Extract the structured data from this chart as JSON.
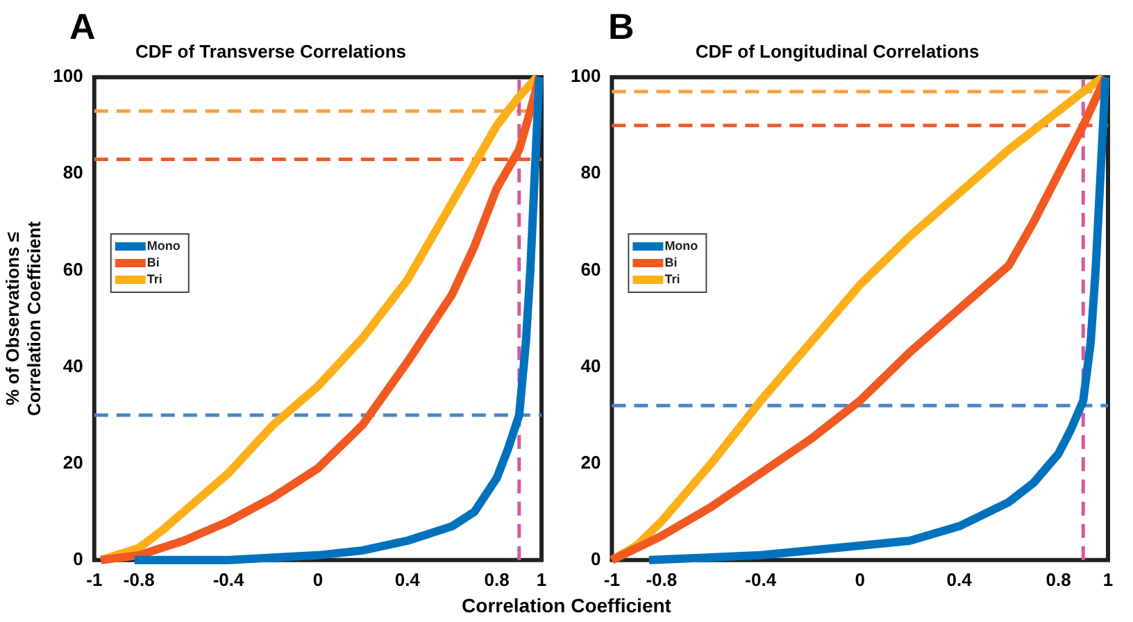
{
  "chart_data": [
    {
      "type": "line",
      "title": "CDF of Transverse Correlations",
      "ylabel": "% of Observations ≤\nCorrelation Coefficient",
      "xlabel": "Correlation Coefficient",
      "annotations": [
        "A"
      ],
      "xlim": [
        -1,
        1
      ],
      "xticks": [
        -1,
        -0.8,
        -0.4,
        0,
        0.4,
        0.8,
        1
      ],
      "ylim": [
        0,
        100
      ],
      "yticks": [
        0,
        20,
        40,
        60,
        80,
        100
      ],
      "grid": false,
      "legend": "left",
      "marker": "none",
      "line_style": "solid",
      "series": [
        {
          "name": "Mono",
          "color": "#0072bd",
          "x": [
            -0.82,
            -0.4,
            0,
            0.2,
            0.4,
            0.6,
            0.7,
            0.8,
            0.85,
            0.9,
            0.93,
            0.95,
            0.97,
            0.99
          ],
          "values": [
            0,
            0,
            1,
            2,
            4,
            7,
            10,
            17,
            23,
            30,
            45,
            60,
            80,
            100
          ]
        },
        {
          "name": "Bi",
          "color": "#f05a22",
          "x": [
            -0.97,
            -0.8,
            -0.6,
            -0.4,
            -0.2,
            0,
            0.2,
            0.4,
            0.6,
            0.7,
            0.8,
            0.9,
            0.95,
            0.99
          ],
          "values": [
            0,
            1,
            4,
            8,
            13,
            19,
            28,
            41,
            55,
            65,
            77,
            85,
            93,
            100
          ]
        },
        {
          "name": "Tri",
          "color": "#fbb01a",
          "x": [
            -0.97,
            -0.8,
            -0.7,
            -0.6,
            -0.4,
            -0.2,
            0,
            0.2,
            0.4,
            0.6,
            0.7,
            0.8,
            0.9,
            0.98
          ],
          "values": [
            0,
            2.5,
            6,
            10,
            18,
            28,
            36,
            46,
            58,
            74,
            82,
            90,
            96,
            100
          ]
        }
      ],
      "ref_lines": [
        {
          "axis": "y",
          "value": 93,
          "color": "#f5a33c",
          "line_style": "dashed"
        },
        {
          "axis": "y",
          "value": 83,
          "color": "#ee5a2a",
          "line_style": "dashed"
        },
        {
          "axis": "y",
          "value": 30,
          "color": "#4a86c5",
          "line_style": "dashed"
        },
        {
          "axis": "x",
          "value": 0.9,
          "color": "#d35aa2",
          "line_style": "dashed"
        }
      ]
    },
    {
      "type": "line",
      "title": "CDF of Longitudinal Correlations",
      "annotations": [
        "B"
      ],
      "xlim": [
        -1,
        1
      ],
      "xticks": [
        -1,
        -0.8,
        -0.4,
        0,
        0.4,
        0.8,
        1
      ],
      "ylim": [
        0,
        100
      ],
      "yticks": [
        0,
        20,
        40,
        60,
        80,
        100
      ],
      "grid": false,
      "legend": "left",
      "marker": "none",
      "line_style": "solid",
      "series": [
        {
          "name": "Mono",
          "color": "#0072bd",
          "x": [
            -0.85,
            -0.4,
            0,
            0.2,
            0.4,
            0.6,
            0.7,
            0.8,
            0.85,
            0.9,
            0.93,
            0.95,
            0.97,
            0.99
          ],
          "values": [
            0,
            1,
            3,
            4,
            7,
            12,
            16,
            22,
            27,
            33,
            45,
            60,
            80,
            100
          ]
        },
        {
          "name": "Bi",
          "color": "#f05a22",
          "x": [
            -1,
            -0.8,
            -0.6,
            -0.4,
            -0.2,
            0,
            0.2,
            0.4,
            0.6,
            0.7,
            0.8,
            0.9,
            0.99
          ],
          "values": [
            0,
            5,
            11,
            18,
            25,
            33,
            43,
            52,
            61,
            70,
            80,
            90,
            100
          ]
        },
        {
          "name": "Tri",
          "color": "#fbb01a",
          "x": [
            -1,
            -0.9,
            -0.8,
            -0.6,
            -0.4,
            -0.2,
            0,
            0.2,
            0.4,
            0.6,
            0.8,
            0.9,
            0.98
          ],
          "values": [
            0,
            3,
            8,
            20,
            33,
            45,
            57,
            67,
            76,
            85,
            93,
            97,
            100
          ]
        }
      ],
      "ref_lines": [
        {
          "axis": "y",
          "value": 97,
          "color": "#f5a33c",
          "line_style": "dashed"
        },
        {
          "axis": "y",
          "value": 90,
          "color": "#ee5a2a",
          "line_style": "dashed"
        },
        {
          "axis": "y",
          "value": 32,
          "color": "#4a86c5",
          "line_style": "dashed"
        },
        {
          "axis": "x",
          "value": 0.9,
          "color": "#d35aa2",
          "line_style": "dashed"
        }
      ]
    }
  ]
}
